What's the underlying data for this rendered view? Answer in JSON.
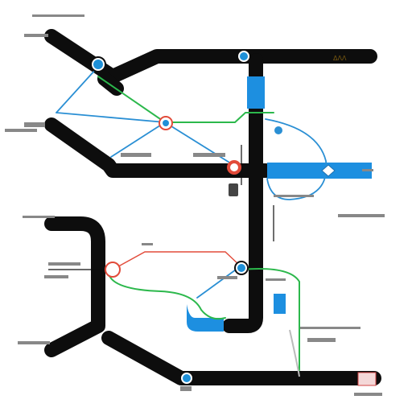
{
  "map": {
    "title": "",
    "colors": {
      "background": "#ffffff",
      "road": "#0d0d0d",
      "water": "#1d8fe0",
      "route_blue": "#2a8fd4",
      "route_green": "#2cb84c",
      "route_red": "#e24b3a",
      "marker_blue": "#1e90d8",
      "marker_red": "#e24b3a"
    },
    "icons": [
      "pin-marker-icon",
      "station-marker-icon",
      "location-dot-icon",
      "diamond-marker-icon"
    ],
    "labels": {
      "top_right_code": "ΔΛΛ"
    }
  }
}
